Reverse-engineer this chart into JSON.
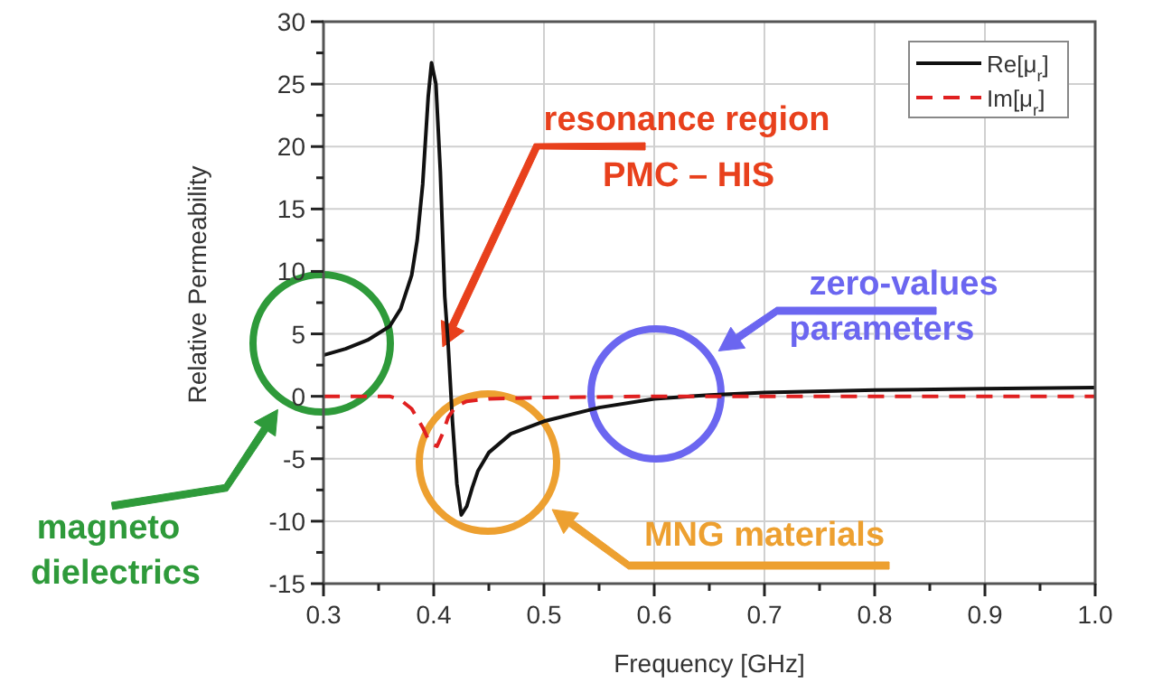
{
  "chart_data": {
    "type": "line",
    "xlabel": "Frequency [GHz]",
    "ylabel": "Relative Permeability",
    "xlim": [
      0.3,
      1.0
    ],
    "xticks": [
      0.3,
      {
        "value": 0.35,
        "label": null
      },
      0.4,
      {
        "value": 0.45,
        "label": null
      },
      0.5,
      {
        "value": 0.55,
        "label": null
      },
      0.6,
      {
        "value": 0.65,
        "label": null
      },
      0.7,
      {
        "value": 0.75,
        "label": null
      },
      0.8,
      {
        "value": 0.85,
        "label": null
      },
      0.9,
      {
        "value": 0.95,
        "label": null
      },
      {
        "value": 1.0,
        "label": "1.0"
      }
    ],
    "ylim": [
      -15,
      30
    ],
    "yticks": [
      -15,
      {
        "value": -12.5,
        "label": null
      },
      -10,
      {
        "value": -7.5,
        "label": null
      },
      -5,
      {
        "value": -2.5,
        "label": null
      },
      0,
      {
        "value": 2.5,
        "label": null
      },
      5,
      {
        "value": 7.5,
        "label": null
      },
      10,
      {
        "value": 12.5,
        "label": null
      },
      15,
      {
        "value": 17.5,
        "label": null
      },
      20,
      {
        "value": 22.5,
        "label": null
      },
      25,
      {
        "value": 27.5,
        "label": null
      },
      30
    ],
    "grid": true,
    "legend": "top right",
    "marker": "none",
    "series": [
      {
        "name": "Re[μ$_{r}$]",
        "color": "#111111",
        "line_style": "solid",
        "x": [
          0.3,
          0.32,
          0.34,
          0.36,
          0.37,
          0.38,
          0.385,
          0.39,
          0.395,
          0.398,
          0.402,
          0.406,
          0.41,
          0.413,
          0.417,
          0.421,
          0.425,
          0.43,
          0.435,
          0.44,
          0.45,
          0.47,
          0.5,
          0.55,
          0.6,
          0.65,
          0.7,
          0.8,
          0.9,
          1.0
        ],
        "values": [
          3.3,
          3.8,
          4.5,
          5.6,
          7,
          9.7,
          12.5,
          17,
          24,
          26.7,
          25,
          18,
          8,
          4.3,
          -2,
          -7,
          -9.5,
          -8.8,
          -7.3,
          -6,
          -4.5,
          -3,
          -2,
          -0.9,
          -0.2,
          0.1,
          0.3,
          0.5,
          0.6,
          0.7
        ]
      },
      {
        "name": "Im[μ$_{r}$]",
        "color": "#e02020",
        "line_style": "dashed",
        "x": [
          0.3,
          0.36,
          0.37,
          0.38,
          0.39,
          0.397,
          0.403,
          0.408,
          0.413,
          0.42,
          0.43,
          0.45,
          0.5,
          0.6,
          0.7,
          1.0
        ],
        "values": [
          0,
          0,
          -0.3,
          -1,
          -2.5,
          -3.8,
          -4,
          -3,
          -1.7,
          -0.8,
          -0.4,
          -0.2,
          -0.1,
          0,
          0,
          0
        ]
      }
    ],
    "annotations": [
      "resonance region\nPMC – HIS",
      "zero-values\nparameters",
      "magneto\ndielectrics",
      "MNG materials"
    ]
  }
}
